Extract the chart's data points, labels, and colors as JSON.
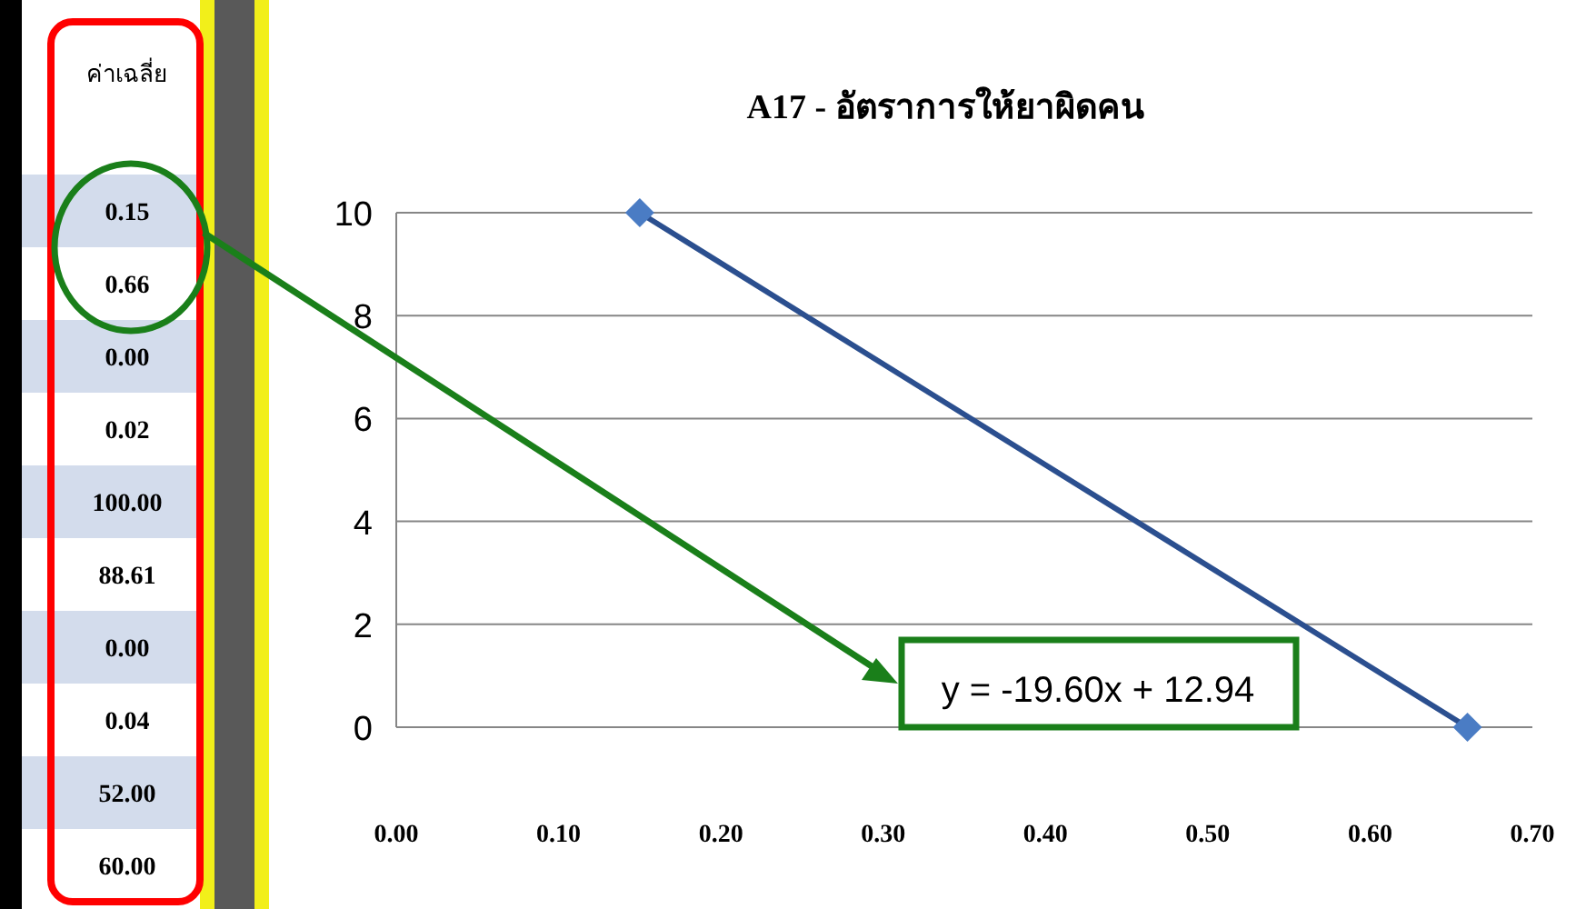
{
  "chart_data": {
    "type": "line",
    "title": "A17 - อัตราการให้ยาผิดคน",
    "series": [
      {
        "color": "#2b4f8f",
        "x": [
          0.15,
          0.66
        ],
        "values": [
          10,
          0
        ]
      }
    ],
    "marker": "diamond",
    "xlim": [
      0,
      0.7
    ],
    "xticks": [
      {
        "value": 0,
        "label": "0.00"
      },
      {
        "value": 0.1,
        "label": "0.10"
      },
      {
        "value": 0.2,
        "label": "0.20"
      },
      {
        "value": 0.3,
        "label": "0.30"
      },
      {
        "value": 0.4,
        "label": "0.40"
      },
      {
        "value": 0.5,
        "label": "0.50"
      },
      {
        "value": 0.6,
        "label": "0.60"
      },
      {
        "value": 0.7,
        "label": "0.70"
      }
    ],
    "ylim": [
      0,
      10
    ],
    "yticks": [
      0,
      2,
      4,
      6,
      8,
      10
    ],
    "grid": "y",
    "annotations": [
      "y = -19.60x + 12.94",
      "ค่าเฉลี่ย",
      "0.15",
      "0.66",
      "0.00",
      "0.02",
      "100.00",
      "88.61",
      "0.00",
      "0.04",
      "52.00",
      "60.00"
    ]
  }
}
